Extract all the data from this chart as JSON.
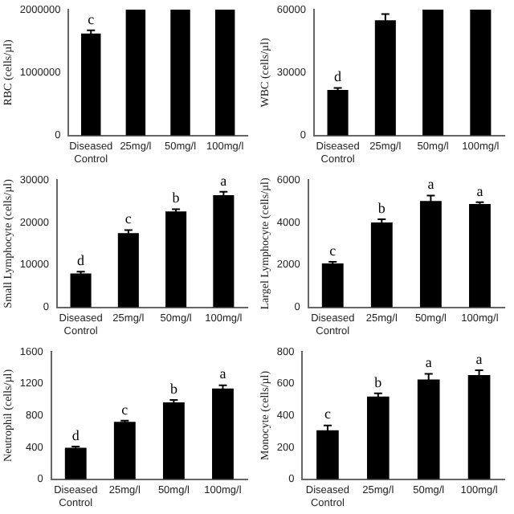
{
  "chart_data": [
    {
      "type": "bar",
      "ylabel": "RBC (cells/µl)",
      "categories": [
        "Diseased Control",
        "25mg/l",
        "50mg/l",
        "100mg/l"
      ],
      "values": [
        1620000,
        2000000,
        2000000,
        2000000
      ],
      "errors": [
        50000,
        null,
        null,
        null
      ],
      "color": "#000000",
      "ylim": [
        0,
        2000000
      ],
      "yticks": [
        0,
        1000000,
        2000000
      ],
      "annotations": [
        {
          "text": "c",
          "x": "Diseased Control",
          "y": 1670000
        }
      ]
    },
    {
      "type": "bar",
      "ylabel": "WBC (cells/µl)",
      "categories": [
        "Diseased Control",
        "25mg/l",
        "50mg/l",
        "100mg/l"
      ],
      "values": [
        21700,
        54900,
        60000,
        60000
      ],
      "errors": [
        1000,
        3000,
        null,
        null
      ],
      "color": "#000000",
      "ylim": [
        0,
        60000
      ],
      "yticks": [
        0,
        30000,
        60000
      ],
      "annotations": [
        {
          "text": "d",
          "x": "Diseased Control",
          "y": 22700
        }
      ]
    },
    {
      "type": "bar",
      "ylabel": "Small Lymphocyte (cells/µl)",
      "categories": [
        "Diseased Control",
        "25mg/l",
        "50mg/l",
        "100mg/l"
      ],
      "values": [
        8000,
        17500,
        22600,
        26400
      ],
      "errors": [
        400,
        700,
        500,
        800
      ],
      "color": "#000000",
      "ylim": [
        0,
        30000
      ],
      "yticks": [
        0,
        10000,
        20000,
        30000
      ],
      "annotations": [
        {
          "text": "d",
          "x": "Diseased Control",
          "y": 8400
        },
        {
          "text": "c",
          "x": "25mg/l",
          "y": 18200
        },
        {
          "text": "b",
          "x": "50mg/l",
          "y": 23100
        },
        {
          "text": "a",
          "x": "100mg/l",
          "y": 27200
        }
      ]
    },
    {
      "type": "bar",
      "ylabel": "Largel Lymphocyte (cells/µl)",
      "categories": [
        "Diseased Control",
        "25mg/l",
        "50mg/l",
        "100mg/l"
      ],
      "values": [
        2070,
        4000,
        5010,
        4870
      ],
      "errors": [
        80,
        150,
        250,
        80
      ],
      "color": "#000000",
      "ylim": [
        0,
        6000
      ],
      "yticks": [
        0,
        2000,
        4000,
        6000
      ],
      "annotations": [
        {
          "text": "c",
          "x": "Diseased Control",
          "y": 2150
        },
        {
          "text": "b",
          "x": "25mg/l",
          "y": 4150
        },
        {
          "text": "a",
          "x": "50mg/l",
          "y": 5260
        },
        {
          "text": "a",
          "x": "100mg/l",
          "y": 4950
        }
      ]
    },
    {
      "type": "bar",
      "ylabel": "Neutrophil (cells/µl)",
      "categories": [
        "Diseased Control",
        "25mg/l",
        "50mg/l",
        "100mg/l"
      ],
      "values": [
        395,
        720,
        966,
        1140
      ],
      "errors": [
        15,
        15,
        30,
        40
      ],
      "color": "#000000",
      "ylim": [
        0,
        1600
      ],
      "yticks": [
        0,
        400,
        800,
        1200,
        1600
      ],
      "annotations": [
        {
          "text": "d",
          "x": "Diseased Control",
          "y": 410
        },
        {
          "text": "c",
          "x": "25mg/l",
          "y": 735
        },
        {
          "text": "b",
          "x": "50mg/l",
          "y": 996
        },
        {
          "text": "a",
          "x": "100mg/l",
          "y": 1180
        }
      ]
    },
    {
      "type": "bar",
      "ylabel": "Monocyte (cells/µl)",
      "categories": [
        "Diseased Control",
        "25mg/l",
        "50mg/l",
        "100mg/l"
      ],
      "values": [
        308,
        519,
        626,
        654
      ],
      "errors": [
        30,
        20,
        35,
        30
      ],
      "color": "#000000",
      "ylim": [
        0,
        800
      ],
      "yticks": [
        0,
        200,
        400,
        600,
        800
      ],
      "annotations": [
        {
          "text": "c",
          "x": "Diseased Control",
          "y": 338
        },
        {
          "text": "b",
          "x": "25mg/l",
          "y": 539
        },
        {
          "text": "a",
          "x": "50mg/l",
          "y": 661
        },
        {
          "text": "a",
          "x": "100mg/l",
          "y": 684
        }
      ]
    }
  ]
}
